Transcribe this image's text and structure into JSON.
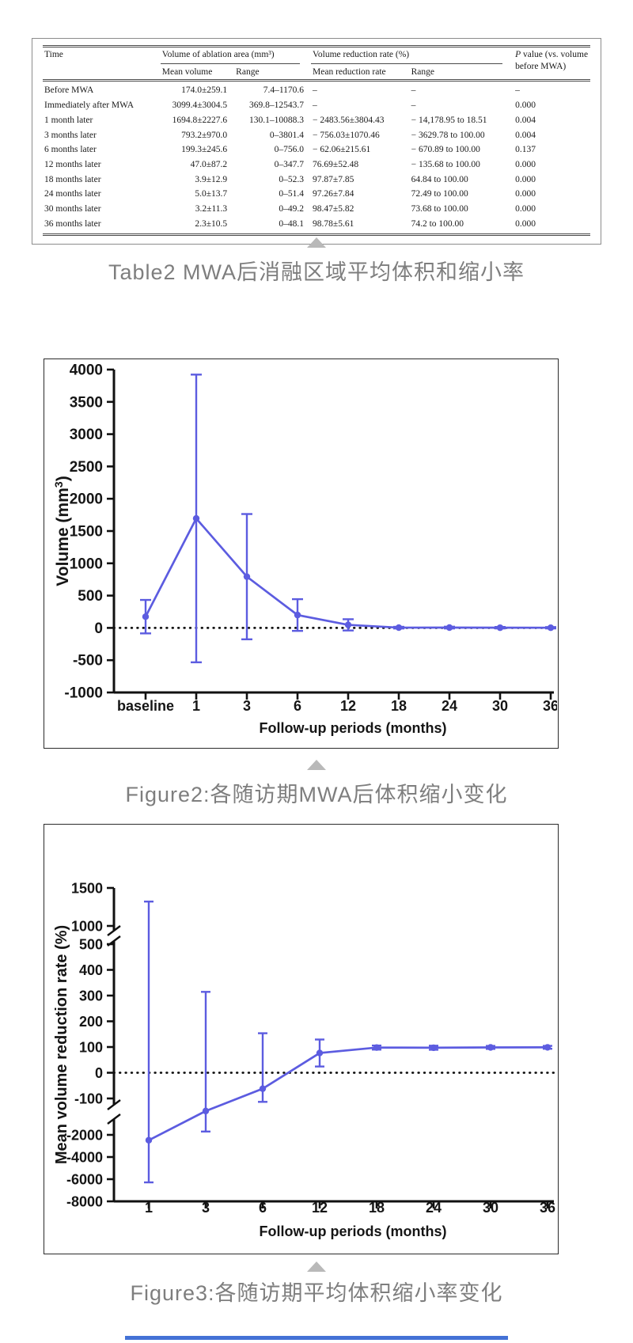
{
  "theme": {
    "accent_blue": "#5c5ce0",
    "caption_gray": "#7e7e7e",
    "triangle_gray": "#b9b9b9",
    "bottom_bar_blue": "#4472d6",
    "table_rule": "#4a4a4a",
    "chart_border": "#2b2b2b"
  },
  "table": {
    "caption": "Table2 MWA后消融区域平均体积和缩小率",
    "header": {
      "time": "Time",
      "volume_group": "Volume of ablation area (mm³)",
      "reduction_group": "Volume reduction rate (%)",
      "p_italic": "P",
      "p_rest": " value (vs. volume before MWA)",
      "sub": [
        "Mean volume",
        "Range",
        "Mean reduction rate",
        "Range"
      ]
    },
    "rows": [
      [
        "Before MWA",
        "174.0±259.1",
        "7.4–1170.6",
        "–",
        "–",
        "–"
      ],
      [
        "Immediately after MWA",
        "3099.4±3004.5",
        "369.8–12543.7",
        "–",
        "–",
        "0.000"
      ],
      [
        "1 month later",
        "1694.8±2227.6",
        "130.1–10088.3",
        "− 2483.56±3804.43",
        "− 14,178.95 to 18.51",
        "0.004"
      ],
      [
        "3 months later",
        "793.2±970.0",
        "0–3801.4",
        "− 756.03±1070.46",
        "− 3629.78 to 100.00",
        "0.004"
      ],
      [
        "6 months later",
        "199.3±245.6",
        "0–756.0",
        "− 62.06±215.61",
        "− 670.89 to 100.00",
        "0.137"
      ],
      [
        "12 months later",
        "47.0±87.2",
        "0–347.7",
        "76.69±52.48",
        "− 135.68 to 100.00",
        "0.000"
      ],
      [
        "18 months later",
        "3.9±12.9",
        "0–52.3",
        "97.87±7.85",
        "64.84 to 100.00",
        "0.000"
      ],
      [
        "24 months later",
        "5.0±13.7",
        "0–51.4",
        "97.26±7.84",
        "72.49 to 100.00",
        "0.000"
      ],
      [
        "30 months later",
        "3.2±11.3",
        "0–49.2",
        "98.47±5.82",
        "73.68 to 100.00",
        "0.000"
      ],
      [
        "36 months later",
        "2.3±10.5",
        "0–48.1",
        "98.78±5.61",
        "74.2 to 100.00",
        "0.000"
      ]
    ]
  },
  "figure2": {
    "caption": "Figure2:各随访期MWA后体积缩小变化"
  },
  "figure3": {
    "caption": "Figure3:各随访期平均体积缩小率变化"
  },
  "chart_data": [
    {
      "type": "line",
      "name": "figure2-volume-after-mwa",
      "categories": [
        "baseline",
        "1",
        "3",
        "6",
        "12",
        "18",
        "24",
        "30",
        "36"
      ],
      "values": [
        174.0,
        1694.8,
        793.2,
        199.3,
        47.0,
        3.9,
        5.0,
        3.2,
        2.3
      ],
      "errors": [
        259.1,
        2227.6,
        970.0,
        245.6,
        87.2,
        12.9,
        13.7,
        11.3,
        10.5
      ],
      "xlabel": "Follow-up periods (months)",
      "ylabel": "Volume (mm³)",
      "ylim": [
        -1000,
        4000
      ],
      "ytick_step": 500,
      "zero_reference_line": "dotted",
      "grid": false,
      "legend": false,
      "line_color": "#5c5ce0"
    },
    {
      "type": "line",
      "name": "figure3-mean-volume-reduction-rate",
      "categories": [
        "1",
        "3",
        "6",
        "12",
        "18",
        "24",
        "30",
        "36"
      ],
      "values": [
        -2483.56,
        -756.03,
        -62.06,
        76.69,
        97.87,
        97.26,
        98.47,
        98.78
      ],
      "errors": [
        3804.43,
        1070.46,
        215.61,
        52.48,
        7.85,
        7.84,
        5.82,
        5.61
      ],
      "xlabel": "Follow-up periods (months)",
      "ylabel": "Mean volume reduction rate (%)",
      "broken_y_axis": true,
      "ytick_segments": [
        [
          1500,
          1000
        ],
        [
          500,
          400,
          300,
          200,
          100,
          0,
          -100
        ],
        [
          -2000,
          -4000,
          -6000,
          -8000
        ]
      ],
      "zero_reference_line": "dotted",
      "grid": false,
      "legend": false,
      "line_color": "#5c5ce0"
    }
  ]
}
